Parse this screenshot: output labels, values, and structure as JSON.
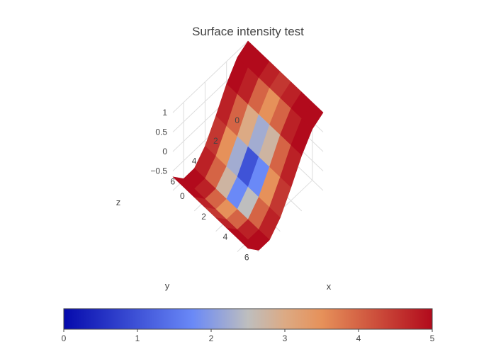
{
  "chart_data": {
    "type": "surface",
    "title": "Surface intensity test",
    "x_axis": {
      "title": "x",
      "ticks": [
        0,
        2,
        4,
        6
      ],
      "tick_labels": [
        "0",
        "2",
        "4",
        "6"
      ],
      "range": [
        0,
        7
      ]
    },
    "y_axis": {
      "title": "y",
      "ticks": [
        0,
        2,
        4,
        6
      ],
      "tick_labels": [
        "0",
        "2",
        "4",
        "6"
      ],
      "range": [
        0,
        7
      ]
    },
    "z_axis": {
      "title": "z",
      "ticks": [
        1,
        0.5,
        0,
        -0.5
      ],
      "tick_labels": [
        "1",
        "0.5",
        "0",
        "−0.5"
      ],
      "range": [
        -1,
        1
      ]
    },
    "surface": {
      "x": [
        0,
        1,
        2,
        3,
        4,
        5,
        6,
        7
      ],
      "y": [
        0,
        1,
        2,
        3,
        4,
        5,
        6,
        7
      ],
      "z_rows": [
        [
          1.0,
          1.0,
          1.0,
          1.0,
          1.0,
          1.0,
          1.0,
          1.0
        ],
        [
          0.84,
          0.84,
          0.84,
          0.84,
          0.84,
          0.84,
          0.84,
          0.84
        ],
        [
          0.42,
          0.42,
          0.42,
          0.42,
          0.42,
          0.42,
          0.42,
          0.42
        ],
        [
          -0.14,
          -0.14,
          -0.14,
          -0.14,
          -0.14,
          -0.14,
          -0.14,
          -0.14
        ],
        [
          -0.65,
          -0.65,
          -0.65,
          -0.65,
          -0.65,
          -0.65,
          -0.65,
          -0.65
        ],
        [
          -0.96,
          -0.96,
          -0.96,
          -0.96,
          -0.96,
          -0.96,
          -0.96,
          -0.96
        ],
        [
          -0.96,
          -0.96,
          -0.96,
          -0.96,
          -0.96,
          -0.96,
          -0.96,
          -0.96
        ],
        [
          -0.65,
          -0.65,
          -0.65,
          -0.65,
          -0.65,
          -0.65,
          -0.65,
          -0.65
        ]
      ],
      "intensity_rows": [
        [
          5,
          5,
          5,
          5,
          5,
          5,
          5,
          5
        ],
        [
          5,
          5,
          5,
          4,
          4,
          5,
          5,
          5
        ],
        [
          5,
          5,
          4,
          3,
          3,
          4,
          5,
          5
        ],
        [
          5,
          4,
          3,
          2,
          1,
          3,
          4,
          5
        ],
        [
          5,
          4,
          3,
          1,
          0,
          3,
          4,
          5
        ],
        [
          5,
          5,
          4,
          3,
          3,
          4,
          5,
          5
        ],
        [
          5,
          5,
          5,
          4,
          4,
          5,
          5,
          5
        ],
        [
          5,
          5,
          5,
          5,
          5,
          5,
          5,
          5
        ]
      ],
      "intensity_mode": "cell"
    },
    "colorbar": {
      "orientation": "horizontal",
      "range": [
        0,
        5
      ],
      "ticks": [
        0,
        1,
        2,
        3,
        4,
        5
      ],
      "tick_labels": [
        "0",
        "1",
        "2",
        "3",
        "4",
        "5"
      ],
      "colorscale": [
        [
          0,
          "#050aac"
        ],
        [
          0.35,
          "#6a89f7"
        ],
        [
          0.5,
          "#bebebe"
        ],
        [
          0.6,
          "#dcaa84"
        ],
        [
          0.7,
          "#e6915a"
        ],
        [
          1,
          "#b20a1c"
        ]
      ]
    }
  }
}
